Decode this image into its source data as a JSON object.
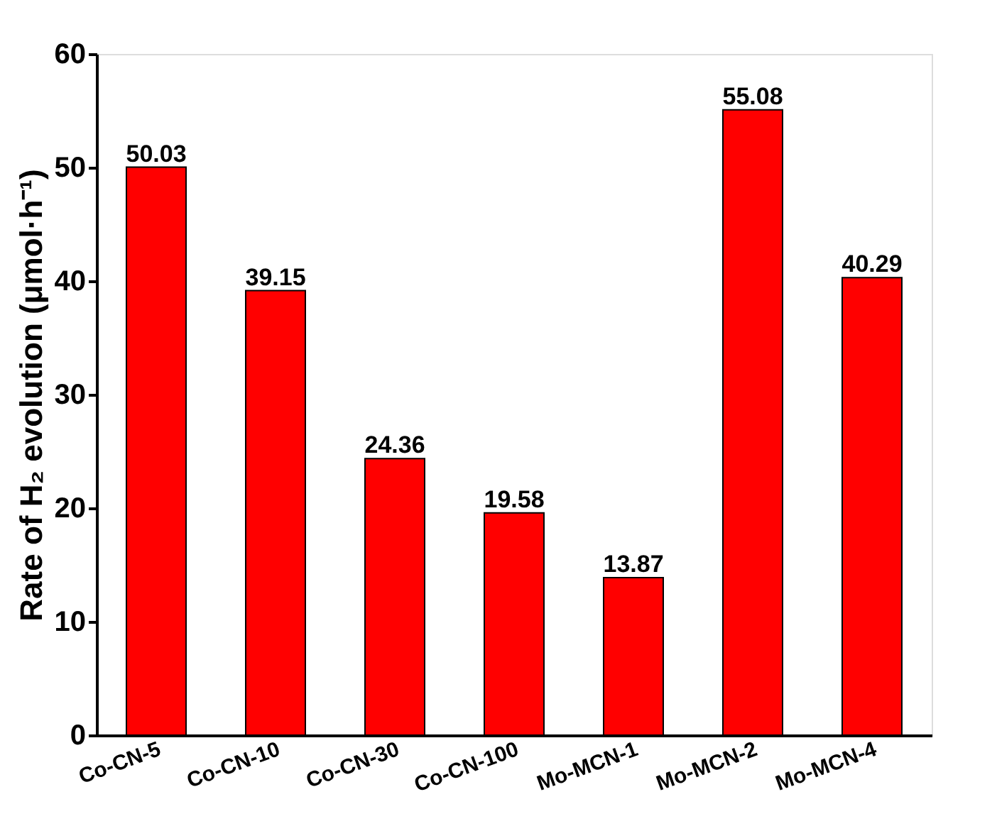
{
  "chart_data": {
    "type": "bar",
    "ylabel": "Rate of H₂ evolution (μmol·h⁻¹)",
    "categories": [
      "Co-CN-5",
      "Co-CN-10",
      "Co-CN-30",
      "Co-CN-100",
      "Mo-MCN-1",
      "Mo-MCN-2",
      "Mo-MCN-4"
    ],
    "values": [
      50.03,
      39.15,
      24.36,
      19.58,
      13.87,
      55.08,
      40.29
    ],
    "color": "#ff0000",
    "ylim": [
      0,
      60
    ],
    "yticks": [
      0,
      10,
      20,
      30,
      40,
      50,
      60
    ],
    "data_labels": true,
    "grid": false
  }
}
